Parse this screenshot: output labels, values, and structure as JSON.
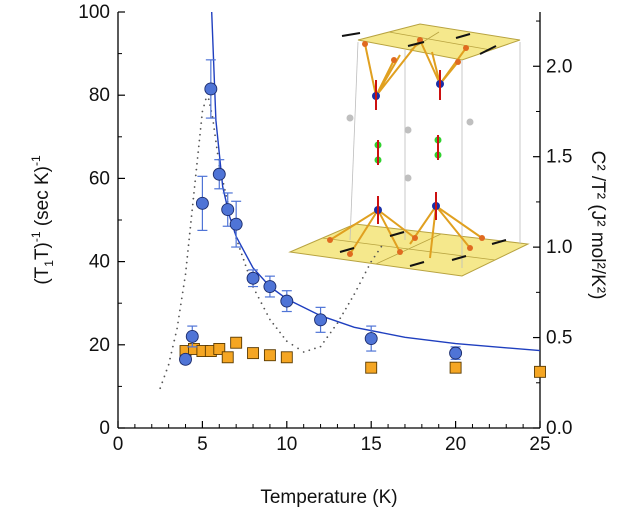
{
  "chart_data": {
    "type": "scatter",
    "xlabel": "Temperature (K)",
    "ylabel_main": "(T",
    "ylabel_sub1": "1",
    "ylabel_tail": "T)",
    "ylabel_sup": "-1",
    "ylabel_unit": " (sec K)",
    "ylabel_unit_sup": "-1",
    "y2label": "C² /T² (J² mol²/K²)",
    "xlim": [
      0,
      25
    ],
    "ylim": [
      0,
      100
    ],
    "y2lim": [
      0,
      2.3
    ],
    "x_ticks": [
      "0",
      "5",
      "10",
      "15",
      "20",
      "25"
    ],
    "y_ticks": [
      "0",
      "20",
      "40",
      "60",
      "80",
      "100"
    ],
    "y2_ticks": [
      "0.0",
      "0.5",
      "1.0",
      "1.5",
      "2.0"
    ],
    "grid": false,
    "series": [
      {
        "marker": "circle",
        "color": "#4f74d6",
        "points": [
          {
            "x": 4.0,
            "y": 16.5,
            "err": 1.0
          },
          {
            "x": 4.4,
            "y": 22.0,
            "err": 2.5
          },
          {
            "x": 5.0,
            "y": 54.0,
            "err": 6.5
          },
          {
            "x": 5.5,
            "y": 81.5,
            "err": 7.0
          },
          {
            "x": 6.0,
            "y": 61.0,
            "err": 3.5
          },
          {
            "x": 6.5,
            "y": 52.5,
            "err": 4.0
          },
          {
            "x": 7.0,
            "y": 49.0,
            "err": 5.5
          },
          {
            "x": 8.0,
            "y": 36.0,
            "err": 2.0
          },
          {
            "x": 9.0,
            "y": 34.0,
            "err": 2.5
          },
          {
            "x": 10.0,
            "y": 30.5,
            "err": 2.5
          },
          {
            "x": 12.0,
            "y": 26.0,
            "err": 3.0
          },
          {
            "x": 15.0,
            "y": 21.5,
            "err": 3.0
          },
          {
            "x": 20.0,
            "y": 18.0,
            "err": 1.5
          }
        ]
      },
      {
        "marker": "square",
        "color": "#f5a623",
        "points": [
          {
            "x": 4.0,
            "y": 18.5
          },
          {
            "x": 4.5,
            "y": 19.0
          },
          {
            "x": 5.0,
            "y": 18.5
          },
          {
            "x": 5.5,
            "y": 18.5
          },
          {
            "x": 6.0,
            "y": 19.0
          },
          {
            "x": 6.5,
            "y": 17.0
          },
          {
            "x": 7.0,
            "y": 20.5
          },
          {
            "x": 8.0,
            "y": 18.0
          },
          {
            "x": 9.0,
            "y": 17.5
          },
          {
            "x": 10.0,
            "y": 17.0
          },
          {
            "x": 15.0,
            "y": 14.5
          },
          {
            "x": 20.0,
            "y": 14.5
          },
          {
            "x": 25.0,
            "y": 13.5
          }
        ]
      }
    ],
    "fit_curve": {
      "color": "#1f3fbf",
      "points": [
        {
          "x": 5.55,
          "y": 101
        },
        {
          "x": 5.8,
          "y": 74
        },
        {
          "x": 6.2,
          "y": 58
        },
        {
          "x": 6.6,
          "y": 51
        },
        {
          "x": 7.0,
          "y": 46
        },
        {
          "x": 8.0,
          "y": 38.5
        },
        {
          "x": 9.0,
          "y": 34.0
        },
        {
          "x": 10.0,
          "y": 31.0
        },
        {
          "x": 12.0,
          "y": 27.0
        },
        {
          "x": 14.0,
          "y": 24.2
        },
        {
          "x": 17.0,
          "y": 21.8
        },
        {
          "x": 20.0,
          "y": 20.3
        },
        {
          "x": 25.0,
          "y": 18.6
        }
      ]
    },
    "heat_capacity_dotted": {
      "color": "#555555",
      "points": [
        {
          "x": 2.5,
          "y": 0.22
        },
        {
          "x": 3.0,
          "y": 0.35
        },
        {
          "x": 3.5,
          "y": 0.55
        },
        {
          "x": 4.0,
          "y": 0.85
        },
        {
          "x": 4.5,
          "y": 1.3
        },
        {
          "x": 5.0,
          "y": 1.75
        },
        {
          "x": 5.3,
          "y": 1.85
        },
        {
          "x": 5.6,
          "y": 1.72
        },
        {
          "x": 6.0,
          "y": 1.45
        },
        {
          "x": 7.0,
          "y": 1.05
        },
        {
          "x": 8.0,
          "y": 0.78
        },
        {
          "x": 9.0,
          "y": 0.6
        },
        {
          "x": 10.0,
          "y": 0.48
        },
        {
          "x": 11.0,
          "y": 0.42
        },
        {
          "x": 12.0,
          "y": 0.45
        },
        {
          "x": 13.0,
          "y": 0.58
        },
        {
          "x": 14.0,
          "y": 0.74
        },
        {
          "x": 15.0,
          "y": 0.92
        },
        {
          "x": 15.8,
          "y": 1.03
        }
      ]
    }
  }
}
